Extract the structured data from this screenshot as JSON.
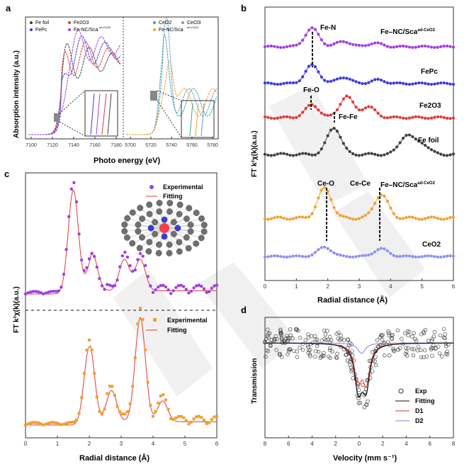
{
  "panels": {
    "a": {
      "label": "a",
      "ylabel": "Absorption intensity (a.u.)",
      "xlabel": "Photo energy (eV)",
      "legend_left": [
        "Fe foil",
        "Fe2O3",
        "FePc",
        "Fe-NC/Sca"
      ],
      "legend_left_sup": "ad-CeO2",
      "legend_right": [
        "CeO2",
        "CeCl3",
        "Fe-NC/Sca"
      ],
      "legend_right_sup": "ad-CeO2",
      "ticks_left": [
        "7100",
        "7120",
        "7140",
        "7160",
        "7180"
      ],
      "ticks_right": [
        "5700",
        "5720",
        "5740",
        "5760",
        "5780"
      ]
    },
    "b": {
      "label": "b",
      "ylabel": "FT k²χ(k)(a.u.)",
      "xlabel": "Radial distance (Å)",
      "ticks": [
        "0",
        "1",
        "2",
        "3",
        "4",
        "5",
        "6"
      ],
      "annotations": [
        "Fe-N",
        "Fe-O",
        "Fe-Fe",
        "Ce-O",
        "Ce-Ce"
      ],
      "series_labels": [
        "Fe–NC/Sca",
        "FePc",
        "Fe2O3",
        "Fe foil",
        "Fe–NC/Sca",
        "CeO2"
      ],
      "sup": "ad-CeO2"
    },
    "c": {
      "label": "c",
      "ylabel": "FT k²χ(k)(a.u.)",
      "xlabel": "Radial distance (Å)",
      "ticks": [
        "0",
        "1",
        "2",
        "3",
        "4",
        "5",
        "6"
      ],
      "legend": [
        "Experimental",
        "Fitting"
      ]
    },
    "d": {
      "label": "d",
      "ylabel": "Transmission",
      "xlabel": "Velocity (mm s⁻¹)",
      "ticks": [
        "8",
        "6",
        "4",
        "2",
        "0",
        "2",
        "4",
        "6",
        "8"
      ],
      "legend": [
        "Exp",
        "Fitting",
        "D1",
        "D2"
      ]
    }
  },
  "chart_data": [
    {
      "type": "line",
      "panel": "b",
      "title": "",
      "xlabel": "Radial distance (Å)",
      "ylabel": "FT k²χ(k)(a.u.)",
      "xlim": [
        0,
        6
      ],
      "series": [
        {
          "name": "Fe–NC/Sca ad-CeO2 (Fe K)",
          "color": "#a040e0",
          "peaks": [
            [
              1.5,
              1.0
            ],
            [
              2.5,
              0.3
            ],
            [
              3.5,
              0.2
            ]
          ]
        },
        {
          "name": "FePc",
          "color": "#3a3ae0",
          "peaks": [
            [
              1.5,
              1.0
            ],
            [
              2.5,
              0.35
            ],
            [
              3.6,
              0.2
            ]
          ]
        },
        {
          "name": "Fe2O3",
          "color": "#e03a3a",
          "peaks": [
            [
              1.5,
              0.6
            ],
            [
              2.6,
              1.0
            ],
            [
              3.3,
              0.5
            ]
          ]
        },
        {
          "name": "Fe foil",
          "color": "#404040",
          "peaks": [
            [
              2.2,
              1.0
            ],
            [
              4.5,
              0.7
            ],
            [
              5.0,
              0.4
            ]
          ]
        },
        {
          "name": "Fe–NC/Sca ad-CeO2 (Ce L3)",
          "color": "#f0a030",
          "peaks": [
            [
              1.9,
              1.0
            ],
            [
              3.7,
              0.8
            ]
          ]
        },
        {
          "name": "CeO2",
          "color": "#9090f0",
          "peaks": [
            [
              1.9,
              0.6
            ],
            [
              3.7,
              0.5
            ]
          ]
        }
      ]
    },
    {
      "type": "line",
      "panel": "c",
      "xlabel": "Radial distance (Å)",
      "xlim": [
        0,
        6
      ],
      "series": [
        {
          "name": "Experimental (top)",
          "color": "#a040e0",
          "peaks": [
            [
              1.5,
              1.0
            ],
            [
              2.1,
              0.35
            ],
            [
              3.1,
              0.3
            ],
            [
              3.6,
              0.3
            ]
          ]
        },
        {
          "name": "Experimental (bottom)",
          "color": "#f0a030",
          "peaks": [
            [
              2.0,
              0.75
            ],
            [
              2.7,
              0.3
            ],
            [
              3.6,
              1.0
            ],
            [
              4.3,
              0.2
            ]
          ]
        }
      ]
    },
    {
      "type": "scatter",
      "panel": "d",
      "xlabel": "Velocity (mm s⁻¹)",
      "ylabel": "Transmission",
      "xlim": [
        -8,
        8
      ],
      "doublet_center": 0.2,
      "doublet_width": 0.35
    }
  ]
}
